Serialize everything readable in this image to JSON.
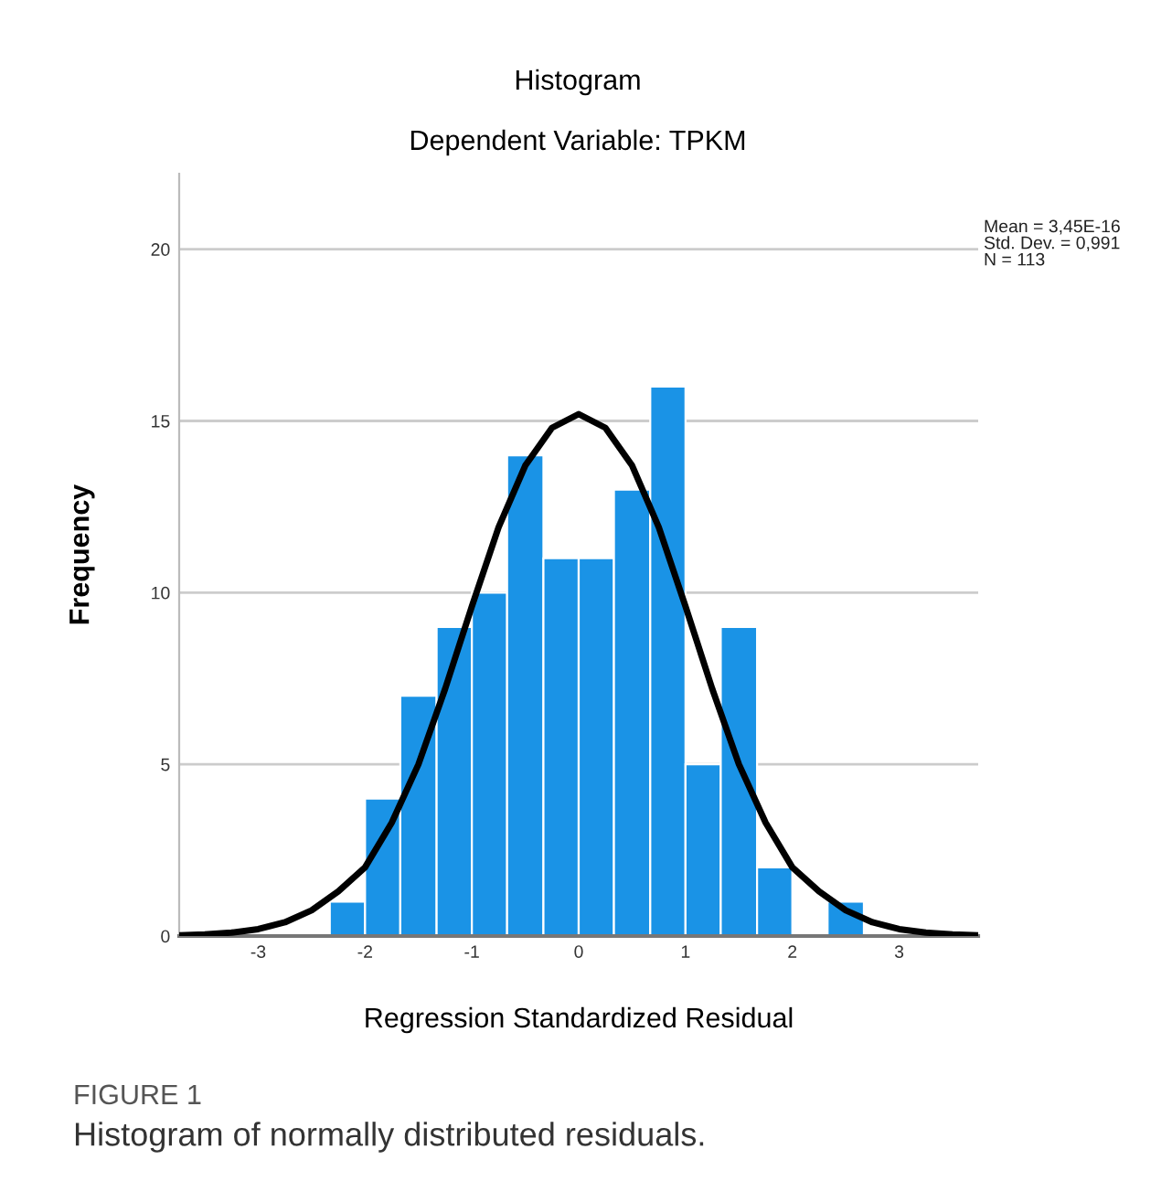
{
  "chart_data": {
    "type": "histogram",
    "title": "Histogram",
    "subtitle": "Dependent Variable: TPKM",
    "xlabel": "Regression Standardized Residual",
    "ylabel": "Frequency",
    "bins": [
      -2.33,
      -2.0,
      -1.67,
      -1.33,
      -1.0,
      -0.67,
      -0.33,
      0,
      0.33,
      0.67,
      1.0,
      1.33,
      1.67,
      2.0,
      2.33,
      2.67
    ],
    "values": [
      1,
      4,
      7,
      9,
      10,
      14,
      11,
      11,
      13,
      16,
      5,
      9,
      2,
      0,
      1
    ],
    "color": "#1a93e6",
    "series": [
      {
        "type": "line",
        "color": "#000000",
        "x": [
          -3.74,
          -3.5,
          -3.25,
          -3,
          -2.75,
          -2.5,
          -2.25,
          -2,
          -1.75,
          -1.5,
          -1.25,
          -1,
          -0.75,
          -0.5,
          -0.25,
          0,
          0.25,
          0.5,
          0.75,
          1,
          1.25,
          1.5,
          1.75,
          2,
          2.25,
          2.5,
          2.75,
          3,
          3.25,
          3.5,
          3.74
        ],
        "values": [
          0.02,
          0.05,
          0.1,
          0.2,
          0.4,
          0.75,
          1.3,
          2.0,
          3.3,
          5.0,
          7.2,
          9.6,
          11.9,
          13.7,
          14.8,
          15.2,
          14.8,
          13.7,
          11.9,
          9.6,
          7.2,
          5.0,
          3.3,
          2.0,
          1.3,
          0.75,
          0.4,
          0.2,
          0.1,
          0.05,
          0.02
        ]
      }
    ],
    "xlim": [
      -3.74,
      3.74
    ],
    "ylim": [
      0,
      22.2
    ],
    "xticks": [
      -3,
      -2,
      -1,
      0,
      1,
      2,
      3
    ],
    "yticks": [
      0,
      5,
      10,
      15,
      20
    ],
    "grid": "y",
    "annotations": [
      "Mean = 3,45E-16\nStd. Dev. = 0,991\nN = 113",
      "FIGURE 1",
      "Histogram of normally distributed residuals."
    ]
  }
}
